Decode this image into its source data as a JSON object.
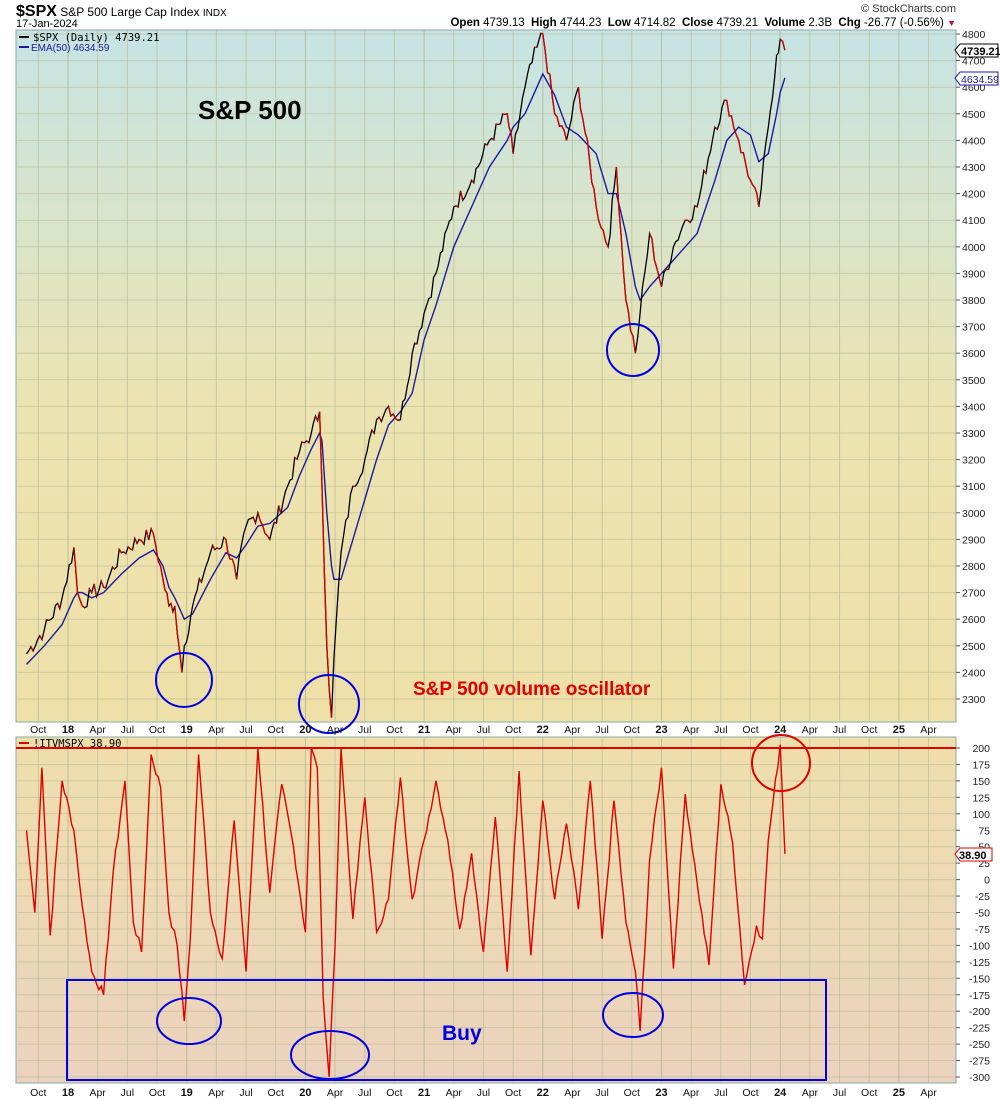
{
  "header": {
    "symbol": "$SPX",
    "description": "S&P 500 Large Cap Index",
    "exchange": "INDX",
    "date": "17-Jan-2024",
    "brand": "© StockCharts.com",
    "open_label": "Open",
    "open": "4739.13",
    "high_label": "High",
    "high": "4744.23",
    "low_label": "Low",
    "low": "4714.82",
    "close_label": "Close",
    "close": "4739.21",
    "volume_label": "Volume",
    "volume": "2.3B",
    "chg_label": "Chg",
    "chg": "-26.77 (-0.56%)",
    "chg_direction_icon": "down-triangle-icon"
  },
  "colors": {
    "price_up": "#000000",
    "price_down": "#d40000",
    "ema": "#1a1aa0",
    "oscillator": "#e00000",
    "annotation_blue": "#0000e0",
    "annotation_red": "#e00000",
    "top_bg": "#c6e4e4",
    "mid_bg": "#efe2a8",
    "bottom_bg": "#ebd3bd",
    "grid": "#b8bc98"
  },
  "price_panel": {
    "legend": [
      {
        "label": "$SPX (Daily) 4739.21",
        "color": "#000000"
      },
      {
        "label": "EMA(50) 4634.59",
        "color": "#1a1aa0"
      }
    ],
    "last_price_tag": "4739.21",
    "ema_tag": "4634.59",
    "annotation_title": "S&P 500",
    "annotation_subtitle": "S&P 500 volume oscillator"
  },
  "oscillator_panel": {
    "legend": "!ITVMSPX 38.90",
    "last_value_tag": "38.90",
    "buy_label": "Buy"
  },
  "x_axis_labels": [
    "Oct",
    "18",
    "Apr",
    "Jul",
    "Oct",
    "19",
    "Apr",
    "Jul",
    "Oct",
    "20",
    "Apr",
    "Jul",
    "Oct",
    "21",
    "Apr",
    "Jul",
    "Oct",
    "22",
    "Apr",
    "Jul",
    "Oct",
    "23",
    "Apr",
    "Jul",
    "Oct",
    "24",
    "Apr",
    "Jul",
    "Oct",
    "25",
    "Apr"
  ],
  "chart_data": [
    {
      "type": "line",
      "title": "$SPX S&P 500 Large Cap Index (Daily) with EMA(50)",
      "xlabel": "",
      "ylabel": "",
      "ylim": [
        2250,
        4820
      ],
      "y_ticks": [
        2300,
        2400,
        2500,
        2600,
        2700,
        2800,
        2900,
        3000,
        3100,
        3200,
        3300,
        3400,
        3500,
        3600,
        3700,
        3800,
        3900,
        4000,
        4100,
        4200,
        4300,
        4400,
        4500,
        4600,
        4700,
        4800
      ],
      "grid": true,
      "legend_position": "top-left",
      "x": [
        2017.65,
        2017.8,
        2017.95,
        2018.05,
        2018.08,
        2018.12,
        2018.2,
        2018.3,
        2018.45,
        2018.6,
        2018.72,
        2018.8,
        2018.85,
        2018.9,
        2018.96,
        2018.98,
        2019.05,
        2019.2,
        2019.33,
        2019.42,
        2019.5,
        2019.6,
        2019.7,
        2019.85,
        2019.95,
        2020.05,
        2020.12,
        2020.14,
        2020.18,
        2020.22,
        2020.24,
        2020.3,
        2020.4,
        2020.5,
        2020.6,
        2020.7,
        2020.8,
        2020.9,
        2021.0,
        2021.1,
        2021.25,
        2021.4,
        2021.55,
        2021.7,
        2021.75,
        2021.85,
        2021.95,
        2022.0,
        2022.1,
        2022.2,
        2022.3,
        2022.45,
        2022.55,
        2022.62,
        2022.7,
        2022.78,
        2022.82,
        2022.9,
        2023.0,
        2023.1,
        2023.2,
        2023.3,
        2023.45,
        2023.55,
        2023.65,
        2023.75,
        2023.82,
        2023.9,
        2023.97,
        2024.0,
        2024.04
      ],
      "series": [
        {
          "name": "$SPX (Daily)",
          "values": [
            2470,
            2560,
            2680,
            2870,
            2700,
            2650,
            2700,
            2720,
            2850,
            2900,
            2920,
            2750,
            2650,
            2650,
            2400,
            2500,
            2650,
            2850,
            2900,
            2750,
            2950,
            3000,
            2900,
            3100,
            3230,
            3300,
            3380,
            3100,
            2500,
            2230,
            2450,
            2850,
            3100,
            3200,
            3350,
            3400,
            3350,
            3600,
            3750,
            3900,
            4150,
            4250,
            4400,
            4500,
            4350,
            4600,
            4750,
            4800,
            4500,
            4400,
            4600,
            4150,
            4000,
            4300,
            3800,
            3600,
            3750,
            4050,
            3850,
            4000,
            4100,
            4150,
            4450,
            4550,
            4400,
            4250,
            4150,
            4450,
            4720,
            4780,
            4739
          ]
        },
        {
          "name": "EMA(50)",
          "values": [
            2430,
            2500,
            2580,
            2680,
            2700,
            2700,
            2680,
            2700,
            2770,
            2830,
            2860,
            2800,
            2720,
            2680,
            2620,
            2600,
            2620,
            2750,
            2850,
            2830,
            2880,
            2950,
            2960,
            3020,
            3140,
            3240,
            3300,
            3270,
            3000,
            2800,
            2750,
            2750,
            2900,
            3050,
            3200,
            3330,
            3380,
            3450,
            3650,
            3780,
            4000,
            4150,
            4300,
            4400,
            4450,
            4500,
            4600,
            4650,
            4570,
            4450,
            4420,
            4350,
            4200,
            4200,
            4050,
            3850,
            3800,
            3850,
            3900,
            3950,
            4000,
            4050,
            4250,
            4400,
            4450,
            4420,
            4320,
            4350,
            4500,
            4580,
            4635
          ]
        }
      ]
    },
    {
      "type": "line",
      "title": "!ITVMSPX S&P 500 volume oscillator",
      "xlabel": "",
      "ylabel": "",
      "ylim": [
        -305,
        210
      ],
      "y_ticks": [
        200,
        175,
        150,
        125,
        100,
        75,
        50,
        25,
        0,
        -25,
        -50,
        -75,
        -100,
        -125,
        -150,
        -175,
        -200,
        -225,
        -250,
        -275,
        -300
      ],
      "grid": true,
      "reference_line": 200,
      "buy_zone": {
        "x": [
          2017.95,
          2024.35
        ],
        "y": [
          -150,
          -300
        ]
      },
      "x": [
        2017.65,
        2017.72,
        2017.78,
        2017.85,
        2017.95,
        2018.05,
        2018.12,
        2018.2,
        2018.3,
        2018.38,
        2018.48,
        2018.55,
        2018.62,
        2018.7,
        2018.78,
        2018.85,
        2018.92,
        2018.98,
        2019.03,
        2019.1,
        2019.2,
        2019.3,
        2019.4,
        2019.5,
        2019.6,
        2019.7,
        2019.8,
        2019.9,
        2020.0,
        2020.05,
        2020.1,
        2020.15,
        2020.2,
        2020.25,
        2020.3,
        2020.4,
        2020.5,
        2020.6,
        2020.7,
        2020.8,
        2020.9,
        2021.0,
        2021.1,
        2021.2,
        2021.3,
        2021.4,
        2021.5,
        2021.6,
        2021.7,
        2021.8,
        2021.9,
        2022.0,
        2022.1,
        2022.2,
        2022.3,
        2022.4,
        2022.5,
        2022.6,
        2022.7,
        2022.78,
        2022.82,
        2022.9,
        2023.0,
        2023.1,
        2023.2,
        2023.3,
        2023.4,
        2023.5,
        2023.6,
        2023.7,
        2023.8,
        2023.85,
        2023.9,
        2024.0,
        2024.04
      ],
      "series": [
        {
          "name": "!ITVMSPX",
          "values": [
            75,
            -50,
            170,
            -85,
            150,
            75,
            -40,
            -140,
            -175,
            10,
            150,
            -65,
            -110,
            190,
            140,
            -50,
            -100,
            -215,
            -90,
            190,
            -50,
            -120,
            90,
            -140,
            200,
            -20,
            145,
            50,
            -80,
            200,
            170,
            -180,
            -300,
            -100,
            200,
            -60,
            125,
            -80,
            -30,
            155,
            -30,
            60,
            150,
            60,
            -75,
            40,
            -110,
            95,
            -140,
            165,
            -115,
            120,
            -30,
            85,
            -45,
            150,
            -90,
            120,
            -65,
            -140,
            -230,
            30,
            170,
            -135,
            130,
            -5,
            -130,
            145,
            55,
            -160,
            -70,
            -90,
            60,
            205,
            39
          ]
        }
      ]
    }
  ]
}
